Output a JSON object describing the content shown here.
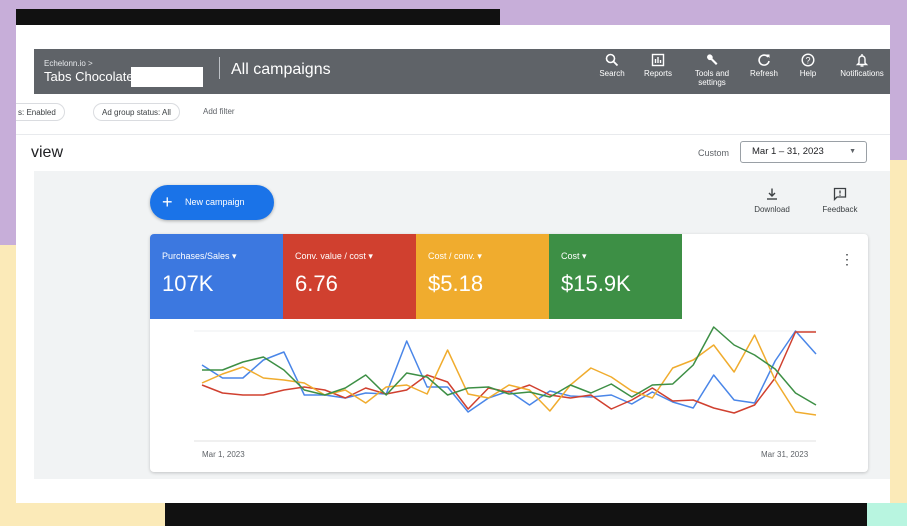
{
  "header": {
    "breadcrumb": "Echelonn.io >",
    "account_name": "Tabs Chocolate",
    "page_title": "All campaigns",
    "tools": [
      {
        "label": "Search",
        "icon": "search-icon",
        "glyph": "⚲"
      },
      {
        "label": "Reports",
        "icon": "reports-icon",
        "glyph": "▥"
      },
      {
        "label": "Tools and settings",
        "icon": "wrench-icon",
        "glyph": "🔧"
      },
      {
        "label": "Refresh",
        "icon": "refresh-icon",
        "glyph": "↻"
      },
      {
        "label": "Help",
        "icon": "help-icon",
        "glyph": "?"
      },
      {
        "label": "Notifications",
        "icon": "bell-icon",
        "glyph": "🔔"
      }
    ]
  },
  "filters": {
    "chips": [
      "s: Enabled",
      "Ad group status: All"
    ],
    "add_filter": "Add filter"
  },
  "overview": {
    "title": "view",
    "custom_label": "Custom",
    "date_range": "Mar 1 – 31, 2023"
  },
  "actions": {
    "new_campaign": "New campaign",
    "download": "Download",
    "feedback": "Feedback"
  },
  "metrics": [
    {
      "label": "Purchases/Sales",
      "value": "107K",
      "color": "#3c78e0"
    },
    {
      "label": "Conv. value / cost",
      "value": "6.76",
      "color": "#d0402f"
    },
    {
      "label": "Cost / conv.",
      "value": "$5.18",
      "color": "#f0ac2e"
    },
    {
      "label": "Cost",
      "value": "$15.9K",
      "color": "#3d8f45"
    }
  ],
  "chart_data": {
    "type": "line",
    "x_start_label": "Mar 1, 2023",
    "x_end_label": "Mar 31, 2023",
    "grid": true,
    "series": [
      {
        "color": "#4a86e8",
        "values": [
          0.66,
          0.53,
          0.53,
          0.71,
          0.79,
          0.36,
          0.36,
          0.33,
          0.38,
          0.37,
          0.9,
          0.44,
          0.44,
          0.19,
          0.33,
          0.4,
          0.26,
          0.4,
          0.35,
          0.34,
          0.36,
          0.27,
          0.39,
          0.29,
          0.23,
          0.56,
          0.31,
          0.28,
          0.7,
          1.0,
          0.77
        ]
      },
      {
        "color": "#d0402f",
        "values": [
          0.46,
          0.38,
          0.36,
          0.36,
          0.41,
          0.44,
          0.41,
          0.33,
          0.43,
          0.37,
          0.41,
          0.56,
          0.49,
          0.22,
          0.43,
          0.39,
          0.46,
          0.36,
          0.33,
          0.36,
          0.22,
          0.31,
          0.43,
          0.3,
          0.31,
          0.23,
          0.18,
          0.26,
          0.53,
          0.99,
          0.99
        ]
      },
      {
        "color": "#f0ac2e",
        "values": [
          0.48,
          0.57,
          0.64,
          0.53,
          0.51,
          0.48,
          0.36,
          0.41,
          0.28,
          0.44,
          0.46,
          0.37,
          0.81,
          0.37,
          0.33,
          0.46,
          0.41,
          0.2,
          0.46,
          0.63,
          0.54,
          0.4,
          0.33,
          0.63,
          0.71,
          0.86,
          0.59,
          0.96,
          0.51,
          0.19,
          0.16
        ]
      },
      {
        "color": "#3d8f45",
        "values": [
          0.61,
          0.61,
          0.69,
          0.74,
          0.61,
          0.41,
          0.36,
          0.43,
          0.56,
          0.36,
          0.58,
          0.54,
          0.36,
          0.43,
          0.44,
          0.37,
          0.39,
          0.34,
          0.46,
          0.38,
          0.47,
          0.34,
          0.46,
          0.47,
          0.66,
          1.04,
          0.86,
          0.76,
          0.62,
          0.38,
          0.26
        ]
      }
    ]
  }
}
